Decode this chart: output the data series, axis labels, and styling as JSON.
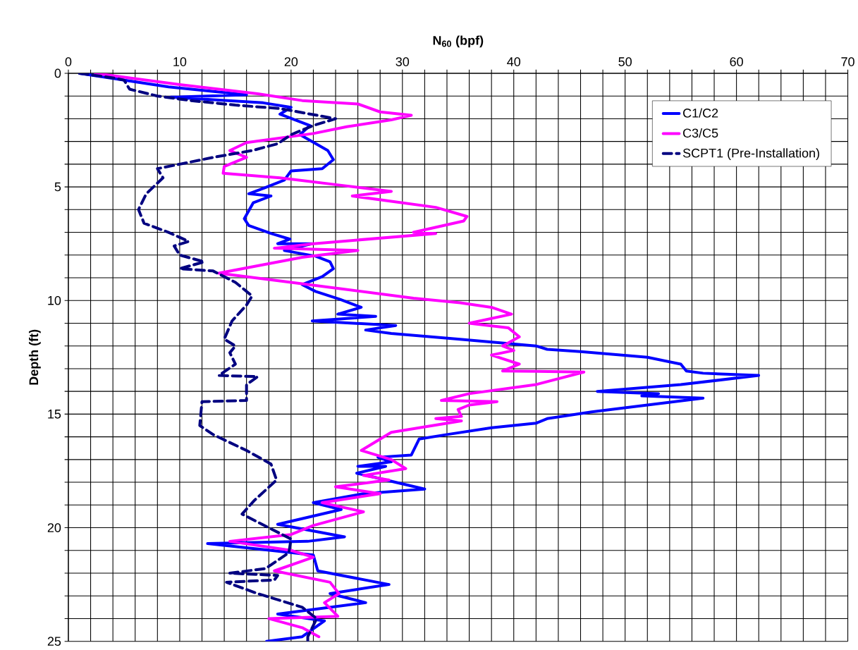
{
  "chart_data": {
    "type": "line",
    "xlabel": "N$_{60}$ (bpf)",
    "ylabel": "Depth (ft)",
    "xlim": [
      0,
      70
    ],
    "ylim": [
      25,
      0
    ],
    "xticks": [
      0,
      {
        "value": 2,
        "label": null
      },
      {
        "value": 4,
        "label": null
      },
      {
        "value": 6,
        "label": null
      },
      {
        "value": 8,
        "label": null
      },
      10,
      {
        "value": 12,
        "label": null
      },
      {
        "value": 14,
        "label": null
      },
      {
        "value": 16,
        "label": null
      },
      {
        "value": 18,
        "label": null
      },
      20,
      {
        "value": 22,
        "label": null
      },
      {
        "value": 24,
        "label": null
      },
      {
        "value": 26,
        "label": null
      },
      {
        "value": 28,
        "label": null
      },
      30,
      {
        "value": 32,
        "label": null
      },
      {
        "value": 34,
        "label": null
      },
      {
        "value": 36,
        "label": null
      },
      {
        "value": 38,
        "label": null
      },
      40,
      {
        "value": 42,
        "label": null
      },
      {
        "value": 44,
        "label": null
      },
      {
        "value": 46,
        "label": null
      },
      {
        "value": 48,
        "label": null
      },
      50,
      {
        "value": 52,
        "label": null
      },
      {
        "value": 54,
        "label": null
      },
      {
        "value": 56,
        "label": null
      },
      {
        "value": 58,
        "label": null
      },
      60,
      {
        "value": 62,
        "label": null
      },
      {
        "value": 64,
        "label": null
      },
      {
        "value": 66,
        "label": null
      },
      {
        "value": 68,
        "label": null
      },
      70
    ],
    "yticks": [
      0,
      {
        "value": 1,
        "label": null
      },
      {
        "value": 2,
        "label": null
      },
      {
        "value": 3,
        "label": null
      },
      {
        "value": 4,
        "label": null
      },
      5,
      {
        "value": 6,
        "label": null
      },
      {
        "value": 7,
        "label": null
      },
      {
        "value": 8,
        "label": null
      },
      {
        "value": 9,
        "label": null
      },
      10,
      {
        "value": 11,
        "label": null
      },
      {
        "value": 12,
        "label": null
      },
      {
        "value": 13,
        "label": null
      },
      {
        "value": 14,
        "label": null
      },
      15,
      {
        "value": 16,
        "label": null
      },
      {
        "value": 17,
        "label": null
      },
      {
        "value": 18,
        "label": null
      },
      {
        "value": 19,
        "label": null
      },
      20,
      {
        "value": 21,
        "label": null
      },
      {
        "value": 22,
        "label": null
      },
      {
        "value": 23,
        "label": null
      },
      {
        "value": 24,
        "label": null
      },
      25
    ],
    "grid": true,
    "legend": "top right",
    "series": [
      {
        "name": "C1/C2",
        "color": "#0000ff",
        "line_style": "solid",
        "x": [
          1,
          9,
          16,
          9.2,
          17.5,
          20,
          19,
          21.7,
          20.8,
          23.3,
          23.8,
          22.8,
          20,
          19.4,
          17.6,
          16.2,
          18.2,
          16.6,
          15.8,
          16.2,
          18.2,
          19.9,
          18.8,
          21.9,
          19.4,
          22.2,
          23.5,
          23.8,
          22.8,
          21,
          22.2,
          24.4,
          26.3,
          24.2,
          27.6,
          21.9,
          29.4,
          26.7,
          29,
          35,
          42,
          43,
          46,
          52,
          55,
          55.5,
          57,
          62,
          55,
          47.5,
          53,
          51.5,
          57,
          52,
          47,
          43,
          42,
          38,
          34,
          31.5,
          30.8,
          27.8,
          29,
          26,
          28.5,
          25.9,
          32,
          26.5,
          22,
          24.5,
          18.8,
          21.5,
          24.8,
          21.5,
          12.5,
          22,
          22.4,
          28.8,
          23.5,
          26.7,
          18.8,
          23,
          21,
          17.8
        ],
        "values": [
          0,
          0.6,
          0.95,
          1.05,
          1.3,
          1.5,
          1.8,
          2.3,
          2.7,
          3.4,
          3.8,
          4.2,
          4.3,
          4.7,
          5.05,
          5.3,
          5.4,
          5.7,
          6.4,
          6.7,
          7.05,
          7.3,
          7.5,
          7.5,
          7.8,
          8.05,
          8.3,
          8.6,
          8.95,
          9.3,
          9.6,
          9.95,
          10.3,
          10.6,
          10.7,
          10.9,
          11.1,
          11.3,
          11.45,
          11.7,
          12.0,
          12.15,
          12.25,
          12.5,
          12.8,
          13.1,
          13.2,
          13.3,
          13.7,
          14.0,
          14.1,
          14.2,
          14.3,
          14.6,
          14.9,
          15.2,
          15.4,
          15.6,
          15.9,
          16.1,
          16.8,
          16.9,
          17.1,
          17.3,
          17.3,
          17.6,
          18.3,
          18.5,
          18.9,
          19.2,
          19.85,
          20.1,
          20.4,
          20.6,
          20.7,
          21.2,
          21.9,
          22.5,
          22.9,
          23.3,
          23.8,
          24.1,
          24.8,
          25
        ]
      },
      {
        "name": "C3/C5",
        "color": "#ff00ff",
        "line_style": "solid",
        "x": [
          2.4,
          10,
          17,
          21,
          26,
          28,
          30.8,
          29,
          25,
          22,
          16,
          14.5,
          16,
          14,
          13.9,
          19,
          24,
          29,
          25.5,
          33,
          35.8,
          35.5,
          31,
          33,
          22,
          18.5,
          26,
          21,
          13.5,
          20,
          31,
          35.2,
          38,
          39.8,
          36,
          39.5,
          40.5,
          39,
          40,
          38,
          40.5,
          39,
          46.3,
          42,
          36,
          33.5,
          38.5,
          36,
          35,
          35.3,
          33,
          35.3,
          29,
          26.3,
          29,
          30.3,
          26.5,
          28.8,
          24,
          28,
          22.8,
          26.5,
          22,
          20,
          14.5,
          20,
          22,
          18.5,
          23.5,
          24.3,
          23,
          24.2,
          18,
          21,
          22.5
        ],
        "values": [
          0,
          0.5,
          0.9,
          1.2,
          1.35,
          1.7,
          1.85,
          2.05,
          2.35,
          2.65,
          3.05,
          3.4,
          3.7,
          4.1,
          4.4,
          4.6,
          4.9,
          5.2,
          5.4,
          5.9,
          6.3,
          6.5,
          7.0,
          7.05,
          7.5,
          7.7,
          7.8,
          8.1,
          8.8,
          9.2,
          9.9,
          10.1,
          10.3,
          10.6,
          11.0,
          11.2,
          11.6,
          12.0,
          12.2,
          12.4,
          12.8,
          13.1,
          13.15,
          13.7,
          14.1,
          14.4,
          14.45,
          14.6,
          14.8,
          15.1,
          15.2,
          15.3,
          15.8,
          16.6,
          17.0,
          17.4,
          17.7,
          17.9,
          18.2,
          18.5,
          18.9,
          19.3,
          19.9,
          20.3,
          20.6,
          21.0,
          21.3,
          21.9,
          22.4,
          22.9,
          23.3,
          23.9,
          24.0,
          24.4,
          24.8
        ]
      },
      {
        "name": "SCPT1 (Pre-Installation)",
        "color": "#000080",
        "line_style": "dashed",
        "x": [
          1,
          4,
          5,
          5.5,
          8,
          11,
          15,
          19,
          24,
          22,
          20,
          18.8,
          16.5,
          13,
          10,
          8,
          8.5,
          7,
          6.3,
          6.8,
          9,
          10.8,
          9.5,
          10,
          12.2,
          10,
          13,
          15,
          16.5,
          16,
          14.7,
          14,
          15,
          14.5,
          15,
          13.5,
          17,
          16,
          16,
          12,
          11.8,
          13,
          16,
          18.2,
          18.7,
          16.7,
          15.6,
          18,
          20,
          19.8,
          17.7,
          14.5,
          18.8,
          18.5,
          14.2,
          17,
          21,
          22.3,
          21.5,
          21.5
        ],
        "values": [
          0,
          0.2,
          0.3,
          0.7,
          1.0,
          1.2,
          1.4,
          1.55,
          2.0,
          2.3,
          2.7,
          3.1,
          3.4,
          3.7,
          4.0,
          4.2,
          4.6,
          5.3,
          6.0,
          6.6,
          7.0,
          7.4,
          7.6,
          8.0,
          8.3,
          8.6,
          8.7,
          9.2,
          9.8,
          10.2,
          10.9,
          11.7,
          12.0,
          12.3,
          12.8,
          13.3,
          13.35,
          13.7,
          14.4,
          14.45,
          15.5,
          15.9,
          16.6,
          17.2,
          17.9,
          18.8,
          19.4,
          20.0,
          20.5,
          21.1,
          21.8,
          22.0,
          22.1,
          22.3,
          22.4,
          22.9,
          23.5,
          24.0,
          24.8,
          25
        ]
      }
    ]
  }
}
